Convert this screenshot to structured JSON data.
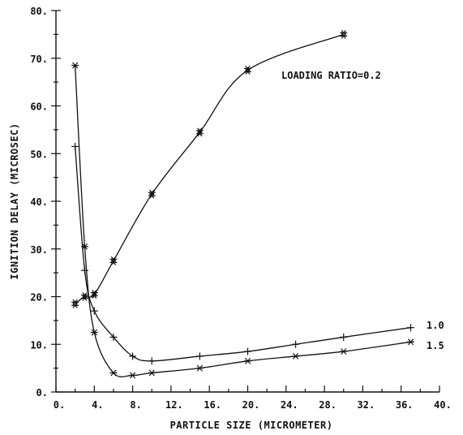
{
  "chart_data": {
    "type": "line",
    "xlabel": "PARTICLE SIZE (MICROMETER)",
    "ylabel": "IGNITION DELAY (MICROSEC)",
    "xlim": [
      0,
      40
    ],
    "ylim": [
      0,
      80
    ],
    "x_ticks": [
      "0.",
      "4.",
      "8.",
      "12.",
      "16.",
      "20.",
      "24.",
      "28.",
      "32.",
      "36.",
      "40."
    ],
    "y_ticks": [
      "0.",
      "10.",
      "20.",
      "30.",
      "40.",
      "50.",
      "60.",
      "70.",
      "80."
    ],
    "grid": false,
    "legend": "none",
    "series": [
      {
        "label": "LOADING RATIO=0.2",
        "marker": "double-star",
        "x": [
          2,
          3,
          4,
          6,
          10,
          15,
          20,
          30
        ],
        "y": [
          18.5,
          20,
          20.5,
          27.5,
          41.5,
          54.5,
          67.5,
          75
        ]
      },
      {
        "label": "1.0",
        "marker": "plus",
        "x": [
          2,
          3,
          4,
          6,
          8,
          10,
          15,
          20,
          25,
          30,
          37
        ],
        "y": [
          51.5,
          25.5,
          17,
          11.5,
          7.5,
          6.5,
          7.5,
          8.5,
          10,
          11.5,
          13.5
        ]
      },
      {
        "label": "1.5",
        "marker": "star",
        "x": [
          2,
          3,
          4,
          6,
          8,
          10,
          15,
          20,
          25,
          30,
          37
        ],
        "y": [
          68.5,
          30.5,
          12.5,
          4,
          3.5,
          4,
          5,
          6.5,
          7.5,
          8.5,
          10.5
        ]
      }
    ]
  }
}
